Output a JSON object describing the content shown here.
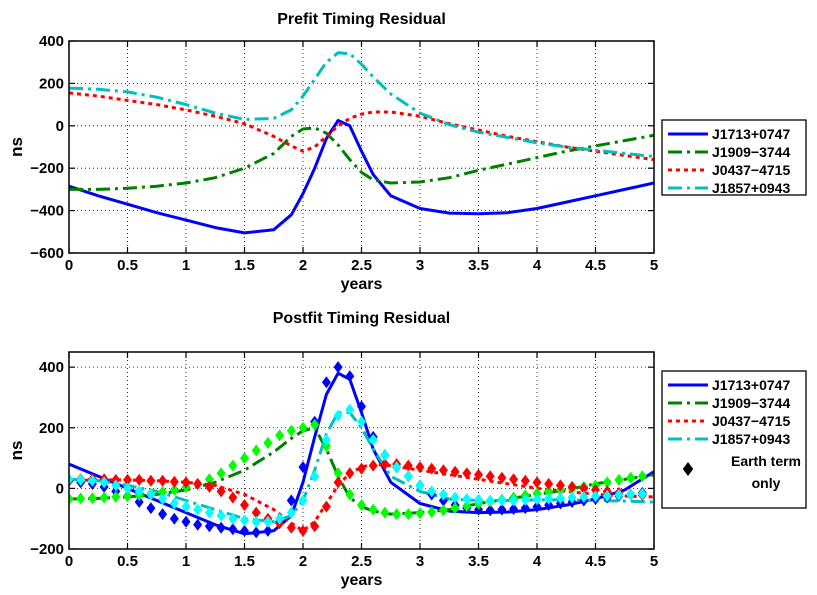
{
  "chart_data": [
    {
      "type": "line",
      "title": "Prefit Timing Residual",
      "xlabel": "years",
      "ylabel": "ns",
      "xlim": [
        0,
        5
      ],
      "ylim": [
        -600,
        400
      ],
      "xticks": [
        0,
        0.5,
        1,
        1.5,
        2,
        2.5,
        3,
        3.5,
        4,
        4.5,
        5
      ],
      "xtick_labels": [
        "0",
        "0.5",
        "1",
        "1.5",
        "2",
        "2.5",
        "3",
        "3.5",
        "4",
        "4.5",
        "5"
      ],
      "yticks": [
        -600,
        -400,
        -200,
        0,
        200,
        400
      ],
      "ytick_labels": [
        "−600",
        "−400",
        "−200",
        "0",
        "200",
        "400"
      ],
      "grid": true,
      "legend_position": "outside-right",
      "series": [
        {
          "name": "J1713+0747",
          "color": "#0000ff",
          "dash": "solid",
          "x": [
            0,
            0.25,
            0.5,
            0.75,
            1.0,
            1.25,
            1.5,
            1.75,
            1.9,
            2.0,
            2.1,
            2.2,
            2.3,
            2.4,
            2.5,
            2.6,
            2.75,
            3.0,
            3.25,
            3.5,
            3.75,
            4.0,
            4.25,
            4.5,
            4.75,
            5.0
          ],
          "y": [
            -285,
            -330,
            -370,
            -410,
            -445,
            -480,
            -505,
            -490,
            -420,
            -320,
            -200,
            -60,
            25,
            0,
            -120,
            -230,
            -330,
            -390,
            -412,
            -415,
            -410,
            -390,
            -360,
            -330,
            -300,
            -270
          ]
        },
        {
          "name": "J1909−3744",
          "color": "#008000",
          "dash": "dashdot",
          "x": [
            0,
            0.25,
            0.5,
            0.75,
            1.0,
            1.25,
            1.5,
            1.75,
            1.9,
            2.0,
            2.1,
            2.2,
            2.3,
            2.4,
            2.5,
            2.6,
            2.75,
            3.0,
            3.25,
            3.5,
            3.75,
            4.0,
            4.25,
            4.5,
            4.75,
            5.0
          ],
          "y": [
            -300,
            -300,
            -295,
            -285,
            -270,
            -245,
            -200,
            -130,
            -50,
            -15,
            -10,
            -35,
            -90,
            -160,
            -220,
            -255,
            -270,
            -265,
            -245,
            -210,
            -180,
            -150,
            -120,
            -95,
            -70,
            -45
          ]
        },
        {
          "name": "J0437−4715",
          "color": "#ff0000",
          "dash": "dotted",
          "x": [
            0,
            0.25,
            0.5,
            0.75,
            1.0,
            1.25,
            1.5,
            1.75,
            1.9,
            2.0,
            2.1,
            2.2,
            2.3,
            2.4,
            2.5,
            2.6,
            2.75,
            3.0,
            3.25,
            3.5,
            3.75,
            4.0,
            4.25,
            4.5,
            4.75,
            5.0
          ],
          "y": [
            155,
            140,
            120,
            100,
            75,
            45,
            10,
            -50,
            -95,
            -120,
            -100,
            -50,
            0,
            35,
            55,
            65,
            65,
            45,
            10,
            -20,
            -50,
            -75,
            -100,
            -120,
            -140,
            -160
          ]
        },
        {
          "name": "J1857+0943",
          "color": "#00bfbf",
          "dash": "dashdot",
          "x": [
            0,
            0.25,
            0.5,
            0.75,
            1.0,
            1.25,
            1.5,
            1.75,
            1.9,
            2.0,
            2.1,
            2.2,
            2.3,
            2.4,
            2.5,
            2.6,
            2.75,
            3.0,
            3.25,
            3.5,
            3.75,
            4.0,
            4.25,
            4.5,
            4.75,
            5.0
          ],
          "y": [
            178,
            172,
            160,
            135,
            100,
            60,
            30,
            35,
            75,
            140,
            220,
            300,
            345,
            340,
            290,
            230,
            150,
            60,
            5,
            -30,
            -55,
            -80,
            -100,
            -115,
            -130,
            -145
          ]
        }
      ]
    },
    {
      "type": "line",
      "title": "Postfit Timing Residual",
      "xlabel": "years",
      "ylabel": "ns",
      "xlim": [
        0,
        5
      ],
      "ylim": [
        -200,
        450
      ],
      "xticks": [
        0,
        0.5,
        1,
        1.5,
        2,
        2.5,
        3,
        3.5,
        4,
        4.5,
        5
      ],
      "xtick_labels": [
        "0",
        "0.5",
        "1",
        "1.5",
        "2",
        "2.5",
        "3",
        "3.5",
        "4",
        "4.5",
        "5"
      ],
      "yticks": [
        -200,
        0,
        200,
        400
      ],
      "ytick_labels": [
        "−200",
        "0",
        "200",
        "400"
      ],
      "grid": true,
      "legend_position": "outside-right",
      "series": [
        {
          "name": "J1713+0747",
          "color": "#0000ff",
          "dash": "solid",
          "x": [
            0,
            0.25,
            0.5,
            0.75,
            1.0,
            1.25,
            1.5,
            1.75,
            1.9,
            2.0,
            2.1,
            2.2,
            2.3,
            2.4,
            2.5,
            2.6,
            2.75,
            3.0,
            3.25,
            3.5,
            3.75,
            4.0,
            4.25,
            4.5,
            4.75,
            5.0
          ],
          "y": [
            80,
            40,
            0,
            -40,
            -80,
            -120,
            -150,
            -140,
            -90,
            20,
            170,
            310,
            380,
            360,
            250,
            130,
            20,
            -50,
            -75,
            -80,
            -78,
            -70,
            -55,
            -35,
            -5,
            55
          ]
        },
        {
          "name": "J1909−3744",
          "color": "#008000",
          "dash": "dashdot",
          "x": [
            0,
            0.25,
            0.5,
            0.75,
            1.0,
            1.25,
            1.5,
            1.75,
            1.9,
            2.0,
            2.1,
            2.2,
            2.3,
            2.4,
            2.5,
            2.6,
            2.75,
            3.0,
            3.25,
            3.5,
            3.75,
            4.0,
            4.25,
            4.5,
            4.75,
            5.0
          ],
          "y": [
            -35,
            -33,
            -28,
            -20,
            -5,
            20,
            60,
            120,
            165,
            190,
            200,
            130,
            40,
            -30,
            -60,
            -75,
            -85,
            -80,
            -70,
            -50,
            -35,
            -20,
            -5,
            15,
            30,
            45
          ]
        },
        {
          "name": "J0437−4715",
          "color": "#ff0000",
          "dash": "dotted",
          "x": [
            0,
            0.25,
            0.5,
            0.75,
            1.0,
            1.25,
            1.5,
            1.75,
            1.9,
            2.0,
            2.1,
            2.2,
            2.3,
            2.4,
            2.5,
            2.6,
            2.75,
            3.0,
            3.25,
            3.5,
            3.75,
            4.0,
            4.25,
            4.5,
            4.75,
            5.0
          ],
          "y": [
            25,
            28,
            28,
            25,
            20,
            10,
            -20,
            -70,
            -115,
            -140,
            -110,
            -50,
            10,
            50,
            70,
            80,
            75,
            60,
            45,
            30,
            15,
            0,
            -10,
            -20,
            -25,
            -28
          ]
        },
        {
          "name": "J1857+0943",
          "color": "#00bfbf",
          "dash": "dashdot",
          "x": [
            0,
            0.25,
            0.5,
            0.75,
            1.0,
            1.25,
            1.5,
            1.75,
            1.9,
            2.0,
            2.1,
            2.2,
            2.3,
            2.4,
            2.5,
            2.6,
            2.75,
            3.0,
            3.25,
            3.5,
            3.75,
            4.0,
            4.25,
            4.5,
            4.75,
            5.0
          ],
          "y": [
            30,
            25,
            10,
            -10,
            -40,
            -70,
            -100,
            -110,
            -90,
            -40,
            60,
            180,
            250,
            250,
            200,
            130,
            40,
            -10,
            -35,
            -40,
            -40,
            -38,
            -38,
            -40,
            -42,
            -45
          ]
        }
      ],
      "earth_term_points": [
        {
          "name": "J1713+0747",
          "color": "#0000ff",
          "x": [
            0.0,
            0.1,
            0.2,
            0.3,
            0.4,
            0.5,
            0.6,
            0.7,
            0.8,
            0.9,
            1.0,
            1.1,
            1.2,
            1.3,
            1.4,
            1.5,
            1.6,
            1.7,
            1.8,
            1.9,
            2.0,
            2.1,
            2.2,
            2.3,
            2.4,
            2.5,
            2.6,
            2.7,
            2.8,
            2.9,
            3.0,
            3.1,
            3.2,
            3.3,
            3.4,
            3.5,
            3.6,
            3.7,
            3.8,
            3.9,
            4.0,
            4.1,
            4.2,
            4.3,
            4.4,
            4.5,
            4.6,
            4.7,
            4.8,
            4.9
          ],
          "y": [
            25,
            20,
            15,
            5,
            -10,
            -25,
            -45,
            -65,
            -85,
            -100,
            -110,
            -120,
            -125,
            -130,
            -135,
            -140,
            -145,
            -140,
            -110,
            -40,
            70,
            220,
            350,
            400,
            370,
            270,
            170,
            110,
            70,
            40,
            10,
            -20,
            -40,
            -55,
            -65,
            -70,
            -72,
            -70,
            -68,
            -65,
            -60,
            -55,
            -50,
            -45,
            -40,
            -35,
            -30,
            -25,
            -20,
            -15
          ]
        },
        {
          "name": "J1909−3744",
          "color": "#00ff00",
          "x": [
            0.0,
            0.1,
            0.2,
            0.3,
            0.4,
            0.5,
            0.6,
            0.7,
            0.8,
            0.9,
            1.0,
            1.1,
            1.2,
            1.3,
            1.4,
            1.5,
            1.6,
            1.7,
            1.8,
            1.9,
            2.0,
            2.1,
            2.2,
            2.3,
            2.4,
            2.5,
            2.6,
            2.7,
            2.8,
            2.9,
            3.0,
            3.1,
            3.2,
            3.3,
            3.4,
            3.5,
            3.6,
            3.7,
            3.8,
            3.9,
            4.0,
            4.1,
            4.2,
            4.3,
            4.4,
            4.5,
            4.6,
            4.7,
            4.8,
            4.9
          ],
          "y": [
            -35,
            -33,
            -32,
            -30,
            -28,
            -25,
            -22,
            -18,
            -12,
            -5,
            5,
            15,
            30,
            50,
            75,
            100,
            125,
            150,
            175,
            190,
            200,
            210,
            140,
            50,
            -20,
            -55,
            -70,
            -80,
            -85,
            -85,
            -82,
            -78,
            -72,
            -65,
            -58,
            -50,
            -43,
            -37,
            -30,
            -23,
            -17,
            -10,
            -5,
            0,
            5,
            10,
            20,
            28,
            35,
            40
          ]
        },
        {
          "name": "J0437−4715",
          "color": "#ff0000",
          "x": [
            0.0,
            0.1,
            0.2,
            0.3,
            0.4,
            0.5,
            0.6,
            0.7,
            0.8,
            0.9,
            1.0,
            1.1,
            1.2,
            1.3,
            1.4,
            1.5,
            1.6,
            1.7,
            1.8,
            1.9,
            2.0,
            2.1,
            2.2,
            2.3,
            2.4,
            2.5,
            2.6,
            2.7,
            2.8,
            2.9,
            3.0,
            3.1,
            3.2,
            3.3,
            3.4,
            3.5,
            3.6,
            3.7,
            3.8,
            3.9,
            4.0,
            4.1,
            4.2,
            4.3,
            4.4,
            4.5,
            4.6,
            4.7,
            4.8,
            4.9
          ],
          "y": [
            28,
            30,
            30,
            30,
            28,
            28,
            28,
            25,
            25,
            22,
            20,
            15,
            5,
            -10,
            -30,
            -55,
            -80,
            -100,
            -115,
            -130,
            -140,
            -125,
            -60,
            20,
            50,
            65,
            75,
            80,
            80,
            75,
            70,
            65,
            60,
            55,
            50,
            45,
            40,
            35,
            30,
            25,
            20,
            15,
            10,
            5,
            0,
            -5,
            -10,
            -15,
            -20,
            -22
          ]
        },
        {
          "name": "J1857+0943",
          "color": "#00ffff",
          "x": [
            0.0,
            0.1,
            0.2,
            0.3,
            0.4,
            0.5,
            0.6,
            0.7,
            0.8,
            0.9,
            1.0,
            1.1,
            1.2,
            1.3,
            1.4,
            1.5,
            1.6,
            1.7,
            1.8,
            1.9,
            2.0,
            2.1,
            2.2,
            2.3,
            2.4,
            2.5,
            2.6,
            2.7,
            2.8,
            2.9,
            3.0,
            3.1,
            3.2,
            3.3,
            3.4,
            3.5,
            3.6,
            3.7,
            3.8,
            3.9,
            4.0,
            4.1,
            4.2,
            4.3,
            4.4,
            4.5,
            4.6,
            4.7,
            4.8,
            4.9
          ],
          "y": [
            30,
            28,
            25,
            20,
            10,
            0,
            -10,
            -20,
            -35,
            -50,
            -60,
            -70,
            -80,
            -90,
            -100,
            -105,
            -110,
            -110,
            -100,
            -80,
            -40,
            40,
            160,
            240,
            260,
            220,
            160,
            110,
            70,
            40,
            10,
            -10,
            -20,
            -30,
            -35,
            -38,
            -40,
            -40,
            -40,
            -38,
            -36,
            -34,
            -32,
            -30,
            -28,
            -26,
            -25,
            -22,
            -20,
            -18
          ]
        }
      ],
      "earth_term_legend_line1": "Earth term",
      "earth_term_legend_line2": "only"
    }
  ]
}
